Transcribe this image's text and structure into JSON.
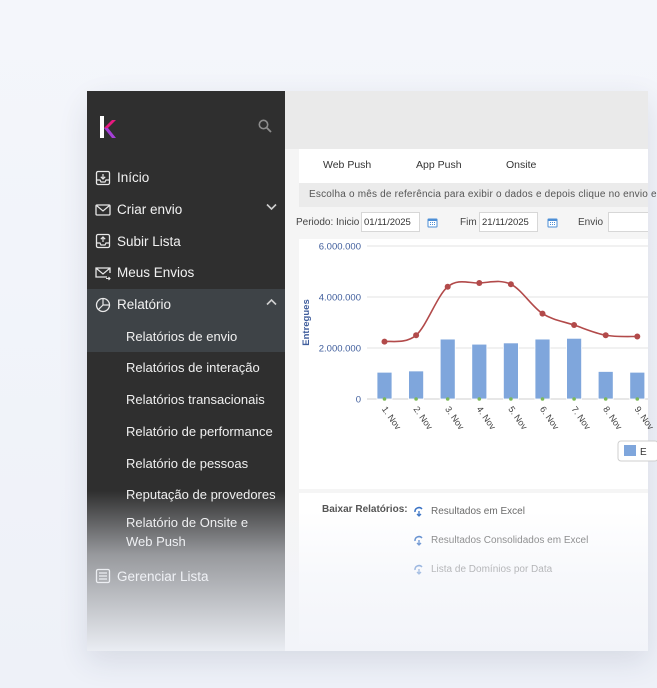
{
  "sidebar": {
    "items": [
      {
        "label": "Início",
        "icon": "inbox-download-icon"
      },
      {
        "label": "Criar envio",
        "icon": "envelope-icon",
        "expandable": true
      },
      {
        "label": "Subir Lista",
        "icon": "upload-list-icon"
      },
      {
        "label": "Meus Envios",
        "icon": "envelope-send-icon"
      },
      {
        "label": "Relatório",
        "icon": "pie-chart-icon",
        "expanded": true
      }
    ],
    "sub_items": [
      {
        "label": "Relatórios de envio",
        "active": true
      },
      {
        "label": "Relatórios de interação"
      },
      {
        "label": "Relatórios transacionais"
      },
      {
        "label": "Relatório de performance"
      },
      {
        "label": "Relatório de pessoas"
      },
      {
        "label": "Reputação de provedores"
      },
      {
        "label": "Relatório de Onsite e Web Push"
      }
    ],
    "after_items": [
      {
        "label": "Gerenciar Lista",
        "icon": "list-icon"
      }
    ]
  },
  "tabs": [
    "Web Push",
    "App Push",
    "Onsite"
  ],
  "instruction": "Escolha o mês de referência para exibir o dados e depois clique no envio e",
  "filters": {
    "period_label": "Periodo: Inicio",
    "start_date": "01/11/2025",
    "end_label": "Fim",
    "end_date": "21/11/2025",
    "envio_label": "Envio"
  },
  "colors": {
    "sidebar_bg": "#2f2f2f",
    "bar": "#7fa6dc",
    "line": "#b24a4a",
    "axis_text": "#3f5d9c",
    "logo_pink": "#e6197f"
  },
  "chart_data": {
    "type": "bar",
    "ylabel": "Entregues",
    "ylim": [
      0,
      6000000
    ],
    "yticks": [
      "6.000.000",
      "4.000.000",
      "2.000.000",
      "0"
    ],
    "categories": [
      "1. Nov",
      "2. Nov",
      "3. Nov",
      "4. Nov",
      "5. Nov",
      "6. Nov",
      "7. Nov",
      "8. Nov",
      "9. Nov"
    ],
    "series": [
      {
        "name": "E",
        "type": "bar",
        "values": [
          1050000,
          1100000,
          2350000,
          2150000,
          2200000,
          2350000,
          2380000,
          1080000,
          1050000
        ]
      },
      {
        "type": "line",
        "values": [
          2250000,
          2500000,
          4400000,
          4550000,
          4500000,
          3350000,
          2900000,
          2500000,
          2450000
        ]
      }
    ],
    "legend": "bottom-right"
  },
  "reports": {
    "label": "Baixar Relatórios:",
    "links": [
      "Resultados em Excel",
      "Resultados Consolidados em Excel",
      "Lista de Domínios por Data"
    ]
  }
}
